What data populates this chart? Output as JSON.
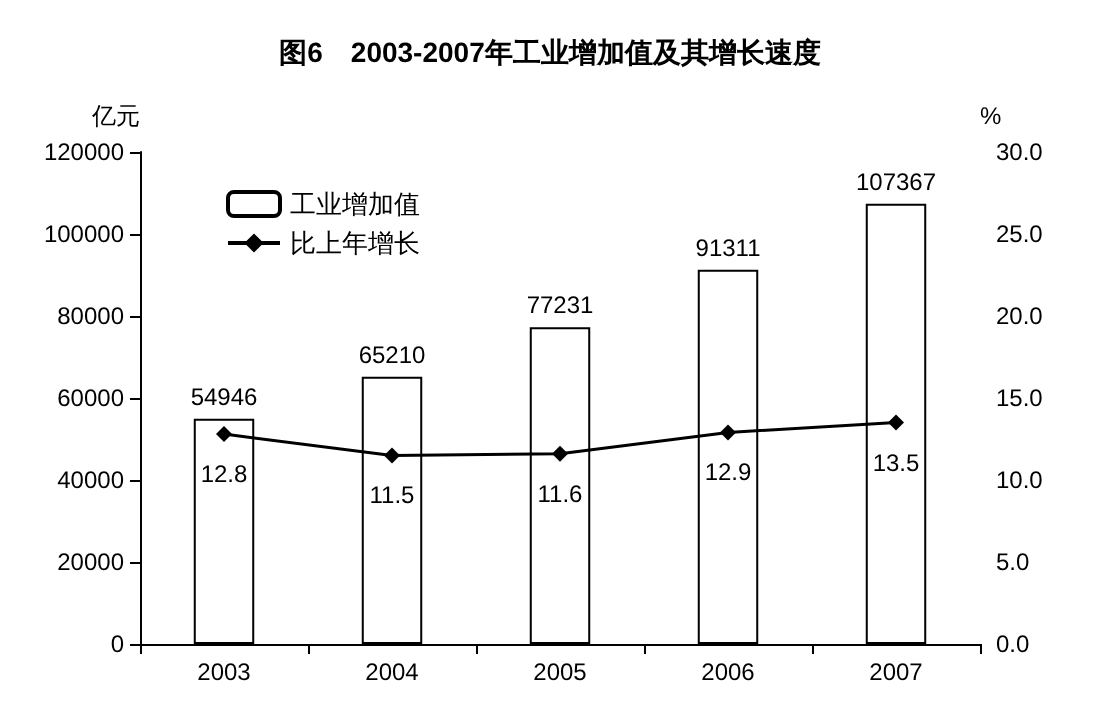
{
  "chart_data": {
    "type": "bar",
    "title": "图6　2003-2007年工业增加值及其增长速度",
    "ylabel": "亿元",
    "y2label": "%",
    "categories": [
      "2003",
      "2004",
      "2005",
      "2006",
      "2007"
    ],
    "series": [
      {
        "name": "工业增加值",
        "color": "#ffffff",
        "values": [
          54946,
          65210,
          77231,
          91311,
          107367
        ]
      },
      {
        "name": "比上年增长",
        "type": "line",
        "axis": "y2",
        "color": "#000000",
        "marker": "diamond",
        "values": [
          12.8,
          11.5,
          11.6,
          12.9,
          13.5
        ]
      }
    ],
    "ylim": [
      0,
      120000
    ],
    "yticks": [
      0,
      20000,
      40000,
      60000,
      80000,
      100000,
      120000
    ],
    "y2lim": [
      0,
      30
    ],
    "y2ticks": [
      {
        "value": 0,
        "label": "0.0"
      },
      {
        "value": 5,
        "label": "5.0"
      },
      {
        "value": 10,
        "label": "10.0"
      },
      {
        "value": 15,
        "label": "15.0"
      },
      {
        "value": 20,
        "label": "20.0"
      },
      {
        "value": 25,
        "label": "25.0"
      },
      {
        "value": 30,
        "label": "30.0"
      }
    ],
    "data_labels": true,
    "grid": false,
    "legend": "top left"
  }
}
